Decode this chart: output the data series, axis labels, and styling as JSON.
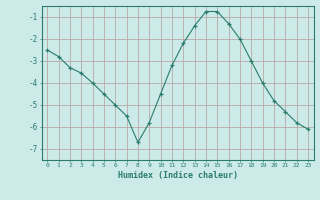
{
  "x": [
    0,
    1,
    2,
    3,
    4,
    5,
    6,
    7,
    8,
    9,
    10,
    11,
    12,
    13,
    14,
    15,
    16,
    17,
    18,
    19,
    20,
    21,
    22,
    23
  ],
  "y": [
    -2.5,
    -2.8,
    -3.3,
    -3.55,
    -4.0,
    -4.5,
    -5.0,
    -5.5,
    -6.7,
    -5.8,
    -4.5,
    -3.2,
    -2.2,
    -1.4,
    -0.75,
    -0.75,
    -1.3,
    -2.0,
    -3.0,
    -4.0,
    -4.8,
    -5.3,
    -5.8,
    -6.1
  ],
  "xlabel": "Humidex (Indice chaleur)",
  "ylim": [
    -7.5,
    -0.5
  ],
  "yticks": [
    -7,
    -6,
    -5,
    -4,
    -3,
    -2,
    -1
  ],
  "xlim": [
    -0.5,
    23.5
  ],
  "line_color": "#2a7d6e",
  "marker_color": "#2a7d6e",
  "bg_color": "#cceae8",
  "grid_color_minor": "#c8b8b8",
  "grid_color_major": "#b8a8a8",
  "spine_color": "#2a7d6e",
  "tick_color": "#2a7d6e",
  "label_color": "#2a7d6e"
}
